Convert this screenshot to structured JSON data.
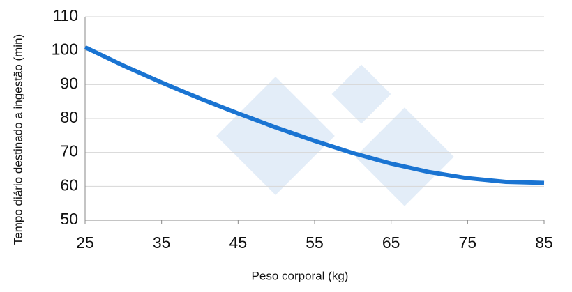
{
  "chart_data": {
    "type": "line",
    "x_label": "Peso corporal (kg)",
    "y_label": "Tempo diário destinado a ingestão (min)",
    "x": [
      25,
      30,
      35,
      40,
      45,
      50,
      55,
      60,
      65,
      70,
      75,
      80,
      85
    ],
    "series": [
      {
        "color": "#1a74d2",
        "values": [
          101,
          95.6,
          90.6,
          85.9,
          81.5,
          77.3,
          73.4,
          69.8,
          66.7,
          64.2,
          62.4,
          61.3,
          61.0
        ]
      }
    ],
    "xlim": [
      25,
      85
    ],
    "xticks": [
      25,
      35,
      45,
      55,
      65,
      75,
      85
    ],
    "ylim": [
      50,
      110
    ],
    "yticks": [
      50,
      60,
      70,
      80,
      90,
      100,
      110
    ],
    "grid": true
  }
}
